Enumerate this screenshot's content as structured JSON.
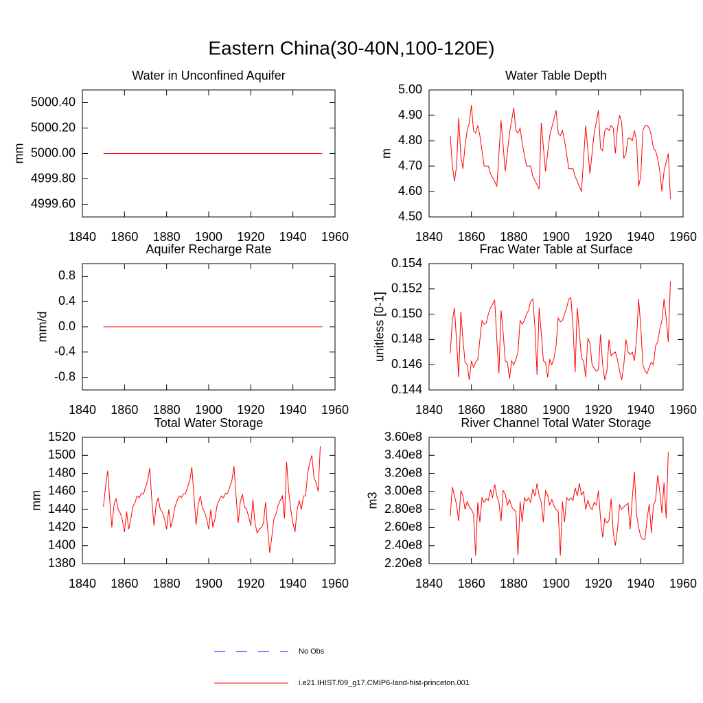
{
  "title": "Eastern China(30-40N,100-120E)",
  "legend": [
    {
      "name": "No Obs",
      "color": "#0000ff",
      "dash": true
    },
    {
      "name": "i.e21.IHIST.f09_g17.CMIP6-land-hist-princeton.001",
      "color": "#ff0000",
      "dash": false
    }
  ],
  "chart_data": [
    {
      "type": "line",
      "title": "Water in Unconfined Aquifer",
      "ylabel": "mm",
      "x": [
        1850,
        1954
      ],
      "series": [
        {
          "color": "#ff0000",
          "values": [
            5000,
            5000
          ]
        }
      ],
      "xlim": [
        1840,
        1960
      ],
      "xticks": [
        1840,
        1860,
        1880,
        1900,
        1920,
        1940,
        1960
      ],
      "ylim": [
        4999.5,
        5000.5
      ],
      "yticks": [
        {
          "value": 4999.6,
          "label": "4999.60"
        },
        {
          "value": 4999.8,
          "label": "4999.80"
        },
        {
          "value": 5000,
          "label": "5000.00"
        },
        {
          "value": 5000.2,
          "label": "5000.20"
        },
        {
          "value": 5000.4,
          "label": "5000.40"
        }
      ]
    },
    {
      "type": "line",
      "title": "Water Table Depth",
      "ylabel": "m",
      "x": [
        1850,
        1851,
        1852,
        1853,
        1854,
        1855,
        1856,
        1857,
        1858,
        1859,
        1860,
        1861,
        1862,
        1863,
        1864,
        1866,
        1868,
        1869,
        1871,
        1872,
        1874,
        1876,
        1878,
        1880,
        1881,
        1882,
        1883,
        1884,
        1886,
        1888,
        1889,
        1892,
        1893,
        1895,
        1897,
        1900,
        1901,
        1902,
        1903,
        1904,
        1906,
        1908,
        1909,
        1912,
        1914,
        1916,
        1918,
        1920,
        1921,
        1922,
        1923,
        1924,
        1925,
        1926,
        1927,
        1928,
        1929,
        1930,
        1931,
        1932,
        1933,
        1934,
        1935,
        1936,
        1937,
        1938,
        1939,
        1940,
        1941,
        1942,
        1943,
        1944,
        1945,
        1946,
        1947,
        1948,
        1949,
        1950,
        1951,
        1953,
        1954
      ],
      "series": [
        {
          "color": "#ff0000",
          "values": [
            4.82,
            4.7,
            4.64,
            4.7,
            4.89,
            4.74,
            4.69,
            4.78,
            4.84,
            4.87,
            4.94,
            4.84,
            4.83,
            4.86,
            4.82,
            4.7,
            4.7,
            4.67,
            4.64,
            4.62,
            4.88,
            4.68,
            4.83,
            4.93,
            4.84,
            4.83,
            4.85,
            4.79,
            4.7,
            4.7,
            4.66,
            4.61,
            4.87,
            4.68,
            4.82,
            4.92,
            4.83,
            4.82,
            4.84,
            4.8,
            4.69,
            4.69,
            4.66,
            4.6,
            4.86,
            4.67,
            4.83,
            4.92,
            4.77,
            4.76,
            4.84,
            4.85,
            4.84,
            4.86,
            4.85,
            4.75,
            4.85,
            4.9,
            4.87,
            4.73,
            4.75,
            4.81,
            4.81,
            4.8,
            4.84,
            4.8,
            4.62,
            4.66,
            4.84,
            4.86,
            4.86,
            4.85,
            4.82,
            4.77,
            4.76,
            4.73,
            4.68,
            4.6,
            4.68,
            4.75,
            4.57
          ]
        }
      ],
      "xlim": [
        1840,
        1960
      ],
      "xticks": [
        1840,
        1860,
        1880,
        1900,
        1920,
        1940,
        1960
      ],
      "ylim": [
        4.5,
        5.0
      ],
      "yticks": [
        {
          "value": 4.5,
          "label": "4.50"
        },
        {
          "value": 4.6,
          "label": "4.60"
        },
        {
          "value": 4.7,
          "label": "4.70"
        },
        {
          "value": 4.8,
          "label": "4.80"
        },
        {
          "value": 4.9,
          "label": "4.90"
        },
        {
          "value": 5.0,
          "label": "5.00"
        }
      ]
    },
    {
      "type": "line",
      "title": "Aquifer Recharge Rate",
      "ylabel": "mm/d",
      "x": [
        1850,
        1954
      ],
      "series": [
        {
          "color": "#ff0000",
          "values": [
            0,
            0
          ]
        }
      ],
      "xlim": [
        1840,
        1960
      ],
      "xticks": [
        1840,
        1860,
        1880,
        1900,
        1920,
        1940,
        1960
      ],
      "ylim": [
        -1,
        1
      ],
      "yticks": [
        -0.8,
        -0.4,
        {
          "value": 0,
          "label": "0.0"
        },
        0.4,
        0.8
      ]
    },
    {
      "type": "line",
      "title": "Frac Water Table at Surface",
      "ylabel": "unitless [0-1]",
      "x": [
        1850,
        1851,
        1852,
        1853,
        1854,
        1855,
        1856,
        1857,
        1858,
        1859,
        1860,
        1861,
        1862,
        1863,
        1864,
        1865,
        1866,
        1867,
        1868,
        1869,
        1870,
        1871,
        1872,
        1873,
        1874,
        1875,
        1876,
        1877,
        1878,
        1879,
        1880,
        1881,
        1882,
        1883,
        1884,
        1885,
        1886,
        1887,
        1888,
        1889,
        1890,
        1891,
        1892,
        1893,
        1894,
        1895,
        1896,
        1897,
        1898,
        1899,
        1900,
        1901,
        1902,
        1903,
        1904,
        1905,
        1906,
        1907,
        1908,
        1909,
        1910,
        1911,
        1912,
        1913,
        1914,
        1915,
        1916,
        1917,
        1918,
        1919,
        1920,
        1921,
        1922,
        1923,
        1924,
        1925,
        1926,
        1927,
        1928,
        1929,
        1930,
        1931,
        1932,
        1933,
        1934,
        1935,
        1936,
        1937,
        1938,
        1939,
        1940,
        1941,
        1942,
        1943,
        1944,
        1945,
        1946,
        1947,
        1948,
        1949,
        1950,
        1951,
        1952,
        1953,
        1954
      ],
      "series": [
        {
          "color": "#ff0000",
          "values": [
            0.1469,
            0.1495,
            0.1505,
            0.1478,
            0.145,
            0.1502,
            0.148,
            0.1462,
            0.146,
            0.1448,
            0.1463,
            0.1458,
            0.1462,
            0.1464,
            0.148,
            0.1495,
            0.1492,
            0.1493,
            0.15,
            0.1505,
            0.1508,
            0.1511,
            0.148,
            0.1453,
            0.1503,
            0.1485,
            0.1463,
            0.1462,
            0.1449,
            0.1463,
            0.146,
            0.1464,
            0.147,
            0.1495,
            0.1492,
            0.1495,
            0.15,
            0.1503,
            0.151,
            0.1512,
            0.149,
            0.1452,
            0.1505,
            0.1485,
            0.1463,
            0.1462,
            0.145,
            0.1464,
            0.146,
            0.1465,
            0.1475,
            0.1497,
            0.1494,
            0.1495,
            0.15,
            0.1505,
            0.1512,
            0.1513,
            0.149,
            0.1454,
            0.1505,
            0.1485,
            0.1465,
            0.1463,
            0.145,
            0.1481,
            0.1477,
            0.146,
            0.1457,
            0.1455,
            0.1456,
            0.1484,
            0.146,
            0.1448,
            0.1455,
            0.148,
            0.1467,
            0.1469,
            0.147,
            0.1464,
            0.1455,
            0.1448,
            0.146,
            0.148,
            0.147,
            0.1468,
            0.147,
            0.1463,
            0.148,
            0.1512,
            0.149,
            0.146,
            0.1455,
            0.1453,
            0.1458,
            0.1462,
            0.146,
            0.1475,
            0.1478,
            0.1488,
            0.1495,
            0.1512,
            0.1497,
            0.1478,
            0.1526
          ]
        }
      ],
      "xlim": [
        1840,
        1960
      ],
      "xticks": [
        1840,
        1860,
        1880,
        1900,
        1920,
        1940,
        1960
      ],
      "ylim": [
        0.144,
        0.154
      ],
      "yticks": [
        0.144,
        0.146,
        0.148,
        {
          "value": 0.15,
          "label": "0.150"
        },
        0.152,
        0.154
      ]
    },
    {
      "type": "line",
      "title": "Total Water Storage",
      "ylabel": "mm",
      "x": [
        1850,
        1851,
        1852,
        1853,
        1854,
        1855,
        1856,
        1857,
        1858,
        1859,
        1860,
        1861,
        1862,
        1863,
        1864,
        1865,
        1866,
        1867,
        1868,
        1869,
        1870,
        1871,
        1872,
        1873,
        1874,
        1875,
        1876,
        1877,
        1878,
        1879,
        1880,
        1881,
        1882,
        1883,
        1884,
        1885,
        1886,
        1887,
        1888,
        1889,
        1890,
        1891,
        1892,
        1893,
        1894,
        1895,
        1896,
        1897,
        1898,
        1899,
        1900,
        1901,
        1902,
        1903,
        1904,
        1905,
        1906,
        1907,
        1908,
        1909,
        1910,
        1911,
        1912,
        1913,
        1914,
        1915,
        1916,
        1917,
        1918,
        1919,
        1920,
        1921,
        1922,
        1923,
        1924,
        1925,
        1926,
        1927,
        1928,
        1929,
        1930,
        1931,
        1932,
        1933,
        1934,
        1935,
        1936,
        1937,
        1938,
        1939,
        1940,
        1941,
        1942,
        1943,
        1944,
        1945,
        1946,
        1947,
        1948,
        1949,
        1950,
        1951,
        1952,
        1953
      ],
      "series": [
        {
          "color": "#ff0000",
          "values": [
            1443,
            1465,
            1483,
            1450,
            1420,
            1445,
            1452,
            1440,
            1436,
            1428,
            1415,
            1438,
            1418,
            1430,
            1443,
            1448,
            1455,
            1453,
            1458,
            1457,
            1465,
            1472,
            1486,
            1450,
            1422,
            1445,
            1453,
            1440,
            1437,
            1430,
            1418,
            1440,
            1420,
            1430,
            1443,
            1450,
            1455,
            1453,
            1457,
            1458,
            1465,
            1472,
            1487,
            1455,
            1423,
            1445,
            1455,
            1442,
            1437,
            1430,
            1418,
            1440,
            1420,
            1430,
            1445,
            1450,
            1455,
            1453,
            1458,
            1458,
            1465,
            1472,
            1488,
            1455,
            1425,
            1448,
            1457,
            1443,
            1440,
            1432,
            1422,
            1451,
            1425,
            1414,
            1418,
            1420,
            1425,
            1448,
            1418,
            1392,
            1410,
            1430,
            1435,
            1445,
            1450,
            1455,
            1430,
            1493,
            1460,
            1440,
            1425,
            1415,
            1440,
            1450,
            1440,
            1455,
            1455,
            1480,
            1492,
            1500,
            1475,
            1470,
            1460,
            1510
          ]
        }
      ],
      "xlim": [
        1840,
        1960
      ],
      "xticks": [
        1840,
        1860,
        1880,
        1900,
        1920,
        1940,
        1960
      ],
      "ylim": [
        1380,
        1520
      ],
      "yticks": [
        1380,
        1400,
        1420,
        1440,
        1460,
        1480,
        1500,
        1520
      ]
    },
    {
      "type": "line",
      "title": "River Channel Total Water Storage",
      "ylabel": "m3",
      "x": [
        1850,
        1851,
        1852,
        1853,
        1854,
        1855,
        1856,
        1857,
        1858,
        1859,
        1860,
        1861,
        1862,
        1863,
        1864,
        1865,
        1866,
        1867,
        1868,
        1869,
        1870,
        1871,
        1872,
        1873,
        1874,
        1875,
        1876,
        1877,
        1878,
        1879,
        1880,
        1881,
        1882,
        1883,
        1884,
        1885,
        1886,
        1887,
        1888,
        1889,
        1890,
        1891,
        1892,
        1893,
        1894,
        1895,
        1896,
        1897,
        1898,
        1899,
        1900,
        1901,
        1902,
        1903,
        1904,
        1905,
        1906,
        1907,
        1908,
        1909,
        1910,
        1911,
        1912,
        1913,
        1914,
        1915,
        1916,
        1917,
        1918,
        1919,
        1920,
        1921,
        1922,
        1923,
        1924,
        1925,
        1926,
        1927,
        1928,
        1929,
        1930,
        1931,
        1932,
        1933,
        1934,
        1935,
        1936,
        1937,
        1938,
        1939,
        1940,
        1941,
        1942,
        1943,
        1944,
        1945,
        1946,
        1947,
        1948,
        1949,
        1950,
        1951,
        1952,
        1953
      ],
      "series": [
        {
          "color": "#ff0000",
          "values": [
            273000000.0,
            305000000.0,
            295000000.0,
            285000000.0,
            267000000.0,
            301000000.0,
            295000000.0,
            280000000.0,
            289000000.0,
            283000000.0,
            280000000.0,
            275000000.0,
            229000000.0,
            288000000.0,
            266000000.0,
            293000000.0,
            288000000.0,
            292000000.0,
            290000000.0,
            302000000.0,
            293000000.0,
            308000000.0,
            295000000.0,
            288000000.0,
            267000000.0,
            301000000.0,
            297000000.0,
            285000000.0,
            291000000.0,
            283000000.0,
            280000000.0,
            278000000.0,
            229000000.0,
            289000000.0,
            266000000.0,
            293000000.0,
            289000000.0,
            293000000.0,
            288000000.0,
            303000000.0,
            295000000.0,
            309000000.0,
            295000000.0,
            288000000.0,
            266000000.0,
            301000000.0,
            296000000.0,
            285000000.0,
            291000000.0,
            284000000.0,
            280000000.0,
            278000000.0,
            229000000.0,
            289000000.0,
            266000000.0,
            293000000.0,
            290000000.0,
            293000000.0,
            290000000.0,
            304000000.0,
            295000000.0,
            309000000.0,
            296000000.0,
            300000000.0,
            280000000.0,
            290000000.0,
            283000000.0,
            280000000.0,
            288000000.0,
            285000000.0,
            301000000.0,
            270000000.0,
            249000000.0,
            270000000.0,
            265000000.0,
            268000000.0,
            292000000.0,
            255000000.0,
            240000000.0,
            258000000.0,
            285000000.0,
            280000000.0,
            283000000.0,
            285000000.0,
            287000000.0,
            258000000.0,
            293000000.0,
            322000000.0,
            275000000.0,
            260000000.0,
            250000000.0,
            247000000.0,
            247000000.0,
            270000000.0,
            286000000.0,
            254000000.0,
            285000000.0,
            290000000.0,
            318000000.0,
            300000000.0,
            276000000.0,
            310000000.0,
            270000000.0,
            344000000.0
          ]
        }
      ],
      "xlim": [
        1840,
        1960
      ],
      "xticks": [
        1840,
        1860,
        1880,
        1900,
        1920,
        1940,
        1960
      ],
      "ylim": [
        220000000.0,
        360000000.0
      ],
      "yticks": [
        {
          "value": 220000000.0,
          "label": "2.20e8"
        },
        {
          "value": 240000000.0,
          "label": "2.40e8"
        },
        {
          "value": 260000000.0,
          "label": "2.60e8"
        },
        {
          "value": 280000000.0,
          "label": "2.80e8"
        },
        {
          "value": 300000000.0,
          "label": "3.00e8"
        },
        {
          "value": 320000000.0,
          "label": "3.20e8"
        },
        {
          "value": 340000000.0,
          "label": "3.40e8"
        },
        {
          "value": 360000000.0,
          "label": "3.60e8"
        }
      ]
    }
  ]
}
